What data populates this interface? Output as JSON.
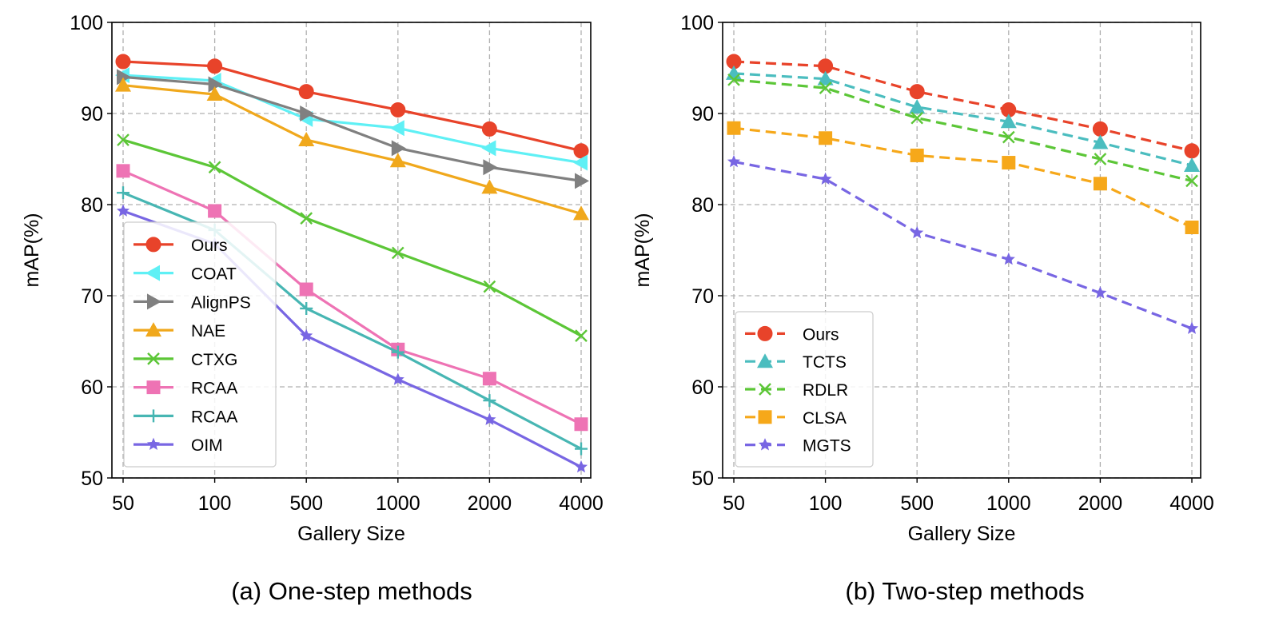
{
  "chart_data": [
    {
      "type": "line",
      "caption": "(a) One-step methods",
      "xlabel": "Gallery Size",
      "ylabel": "mAP(%)",
      "categories": [
        "50",
        "100",
        "500",
        "1000",
        "2000",
        "4000"
      ],
      "ylim": [
        50,
        100
      ],
      "yticks": [
        "50",
        "60",
        "70",
        "80",
        "90",
        "100"
      ],
      "grid": true,
      "legend_position": "lower-left",
      "line_style": "solid",
      "series": [
        {
          "name": "Ours",
          "color": "#e8432a",
          "marker": "circle",
          "values": [
            95.7,
            95.2,
            92.4,
            90.4,
            88.3,
            85.9
          ]
        },
        {
          "name": "COAT",
          "color": "#5ff0f5",
          "marker": "triangle-left",
          "values": [
            94.2,
            93.6,
            89.4,
            88.4,
            86.2,
            84.6
          ]
        },
        {
          "name": "AlignPS",
          "color": "#808080",
          "marker": "triangle-right",
          "values": [
            94.0,
            93.2,
            90.0,
            86.2,
            84.1,
            82.6
          ]
        },
        {
          "name": "NAE",
          "color": "#f0a81c",
          "marker": "triangle-up",
          "values": [
            93.1,
            92.1,
            87.1,
            84.8,
            81.9,
            79.0
          ]
        },
        {
          "name": "CTXG",
          "color": "#5cc637",
          "marker": "x",
          "values": [
            87.1,
            84.1,
            78.5,
            74.7,
            71.0,
            65.6
          ]
        },
        {
          "name": "RCAA",
          "color": "#ee73b4",
          "marker": "square",
          "values": [
            83.7,
            79.3,
            70.7,
            64.1,
            60.9,
            55.9
          ]
        },
        {
          "name": "RCAA",
          "color": "#47b6b3",
          "marker": "plus",
          "values": [
            81.3,
            77.2,
            68.6,
            63.8,
            58.5,
            53.2
          ]
        },
        {
          "name": "OIM",
          "color": "#7866e3",
          "marker": "star",
          "values": [
            79.3,
            75.7,
            65.6,
            60.8,
            56.4,
            51.2
          ]
        }
      ]
    },
    {
      "type": "line",
      "caption": "(b) Two-step methods",
      "xlabel": "Gallery Size",
      "ylabel": "mAP(%)",
      "categories": [
        "50",
        "100",
        "500",
        "1000",
        "2000",
        "4000"
      ],
      "ylim": [
        50,
        100
      ],
      "yticks": [
        "50",
        "60",
        "70",
        "80",
        "90",
        "100"
      ],
      "grid": true,
      "legend_position": "lower-left",
      "line_style": "dashed",
      "series": [
        {
          "name": "Ours",
          "color": "#e8432a",
          "marker": "circle",
          "values": [
            95.7,
            95.2,
            92.4,
            90.4,
            88.3,
            85.9
          ]
        },
        {
          "name": "TCTS",
          "color": "#4bbdbf",
          "marker": "triangle-up",
          "values": [
            94.4,
            93.8,
            90.7,
            89.1,
            86.8,
            84.3
          ]
        },
        {
          "name": "RDLR",
          "color": "#5cc637",
          "marker": "x",
          "values": [
            93.7,
            92.8,
            89.5,
            87.4,
            85.0,
            82.6
          ]
        },
        {
          "name": "CLSA",
          "color": "#f6a81a",
          "marker": "square",
          "values": [
            88.4,
            87.3,
            85.4,
            84.6,
            82.3,
            77.5
          ]
        },
        {
          "name": "MGTS",
          "color": "#7866e3",
          "marker": "star",
          "values": [
            84.7,
            82.8,
            76.9,
            74.0,
            70.3,
            66.4
          ]
        }
      ]
    }
  ]
}
